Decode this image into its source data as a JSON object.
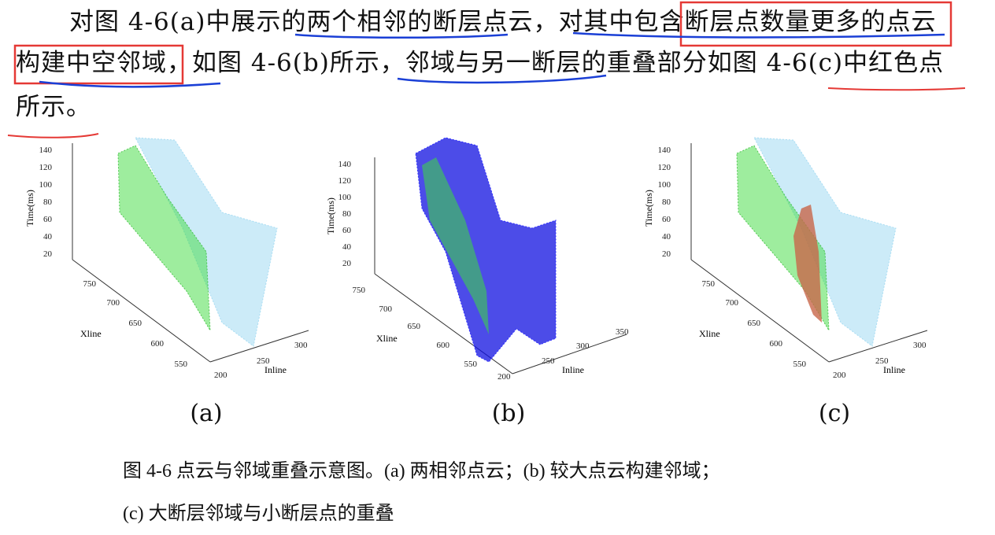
{
  "paragraph": {
    "line1": "对图 4-6(a)中展示的两个相邻的断层点云，对其中包含断层点数量更多的点云",
    "line2": "构建中空邻域，如图 4-6(b)所示，邻域与另一断层的重叠部分如图 4-6(c)中红色点",
    "line3": "所示。"
  },
  "figures": [
    {
      "label": "(a)",
      "z_label": "Time(ms)",
      "x_label": "Inline",
      "y_label": "Xline",
      "z_ticks": [
        "140",
        "120",
        "100",
        "80",
        "60",
        "40",
        "20"
      ],
      "y_ticks": [
        "750",
        "700",
        "650",
        "600",
        "550"
      ],
      "x_ticks": [
        "200",
        "250",
        "300"
      ]
    },
    {
      "label": "(b)",
      "z_label": "Time(ms)",
      "x_label": "Inline",
      "y_label": "Xline",
      "z_ticks": [
        "140",
        "120",
        "100",
        "80",
        "60",
        "40",
        "20"
      ],
      "y_ticks": [
        "750",
        "700",
        "650",
        "600",
        "550"
      ],
      "x_ticks": [
        "200",
        "250",
        "300",
        "350"
      ]
    },
    {
      "label": "(c)",
      "z_label": "Time(ms)",
      "x_label": "Inline",
      "y_label": "Xline",
      "z_ticks": [
        "140",
        "120",
        "100",
        "80",
        "60",
        "40",
        "20"
      ],
      "y_ticks": [
        "750",
        "700",
        "650",
        "600",
        "550"
      ],
      "x_ticks": [
        "200",
        "250",
        "300"
      ]
    }
  ],
  "caption": {
    "line1": "图 4-6  点云与邻域重叠示意图。(a)  两相邻点云；(b)  较大点云构建邻域；",
    "line2": "(c)  大断层邻域与小断层点的重叠"
  },
  "colors": {
    "annotation_red": "#e53935",
    "annotation_blue": "#1a3fd6",
    "green_cloud": "#3ddc3d",
    "cyan_cloud": "#8fd3f0",
    "blue_neighborhood": "#1010e0",
    "red_overlap": "#c8664a"
  }
}
